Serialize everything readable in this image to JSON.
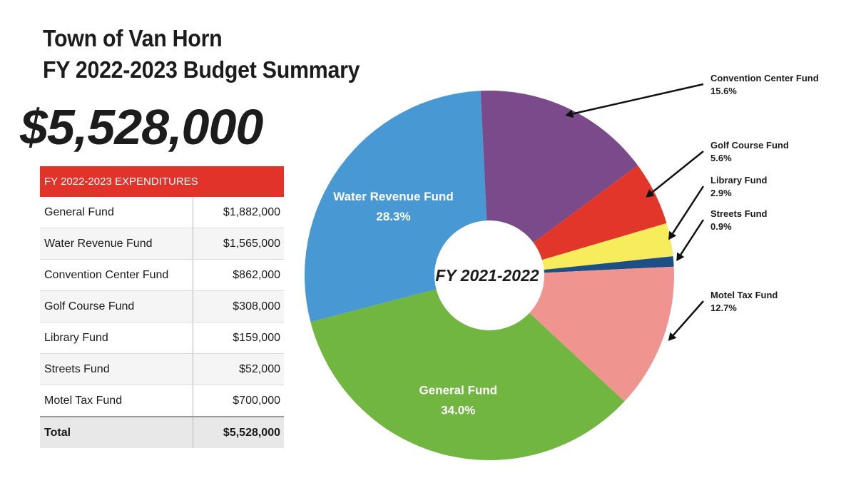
{
  "title": {
    "line1": "Town of Van Horn",
    "line2": "FY 2022-2023 Budget Summary"
  },
  "total_amount": "$5,528,000",
  "table": {
    "header": "FY 2022-2023 EXPENDITURES",
    "rows": [
      {
        "name": "General Fund",
        "amount": "$1,882,000"
      },
      {
        "name": "Water Revenue Fund",
        "amount": "$1,565,000"
      },
      {
        "name": "Convention Center Fund",
        "amount": "$862,000"
      },
      {
        "name": "Golf Course Fund",
        "amount": "$308,000"
      },
      {
        "name": "Library Fund",
        "amount": "$159,000"
      },
      {
        "name": "Streets Fund",
        "amount": "$52,000"
      },
      {
        "name": "Motel Tax Fund",
        "amount": "$700,000"
      }
    ],
    "total": {
      "name": "Total",
      "amount": "$5,528,000"
    }
  },
  "colors": {
    "header_red": "#e2332b",
    "general": "#71b640",
    "water": "#4898d4",
    "convention": "#7b4a8b",
    "golf": "#e3362a",
    "library": "#f6ec5c",
    "streets": "#1d4e84",
    "motel": "#f0948f"
  },
  "chart_data": {
    "type": "pie",
    "center_label": "FY 2021-2022",
    "slices": [
      {
        "name": "General Fund",
        "value": 34.0,
        "label": "34.0%",
        "color": "#71b640"
      },
      {
        "name": "Water Revenue Fund",
        "value": 28.3,
        "label": "28.3%",
        "color": "#4898d4"
      },
      {
        "name": "Convention Center Fund",
        "value": 15.6,
        "label": "15.6%",
        "color": "#7b4a8b"
      },
      {
        "name": "Golf Course Fund",
        "value": 5.6,
        "label": "5.6%",
        "color": "#e3362a"
      },
      {
        "name": "Library Fund",
        "value": 2.9,
        "label": "2.9%",
        "color": "#f6ec5c"
      },
      {
        "name": "Streets Fund",
        "value": 0.9,
        "label": "0.9%",
        "color": "#1d4e84"
      },
      {
        "name": "Motel Tax Fund",
        "value": 12.7,
        "label": "12.7%",
        "color": "#f0948f"
      }
    ]
  }
}
